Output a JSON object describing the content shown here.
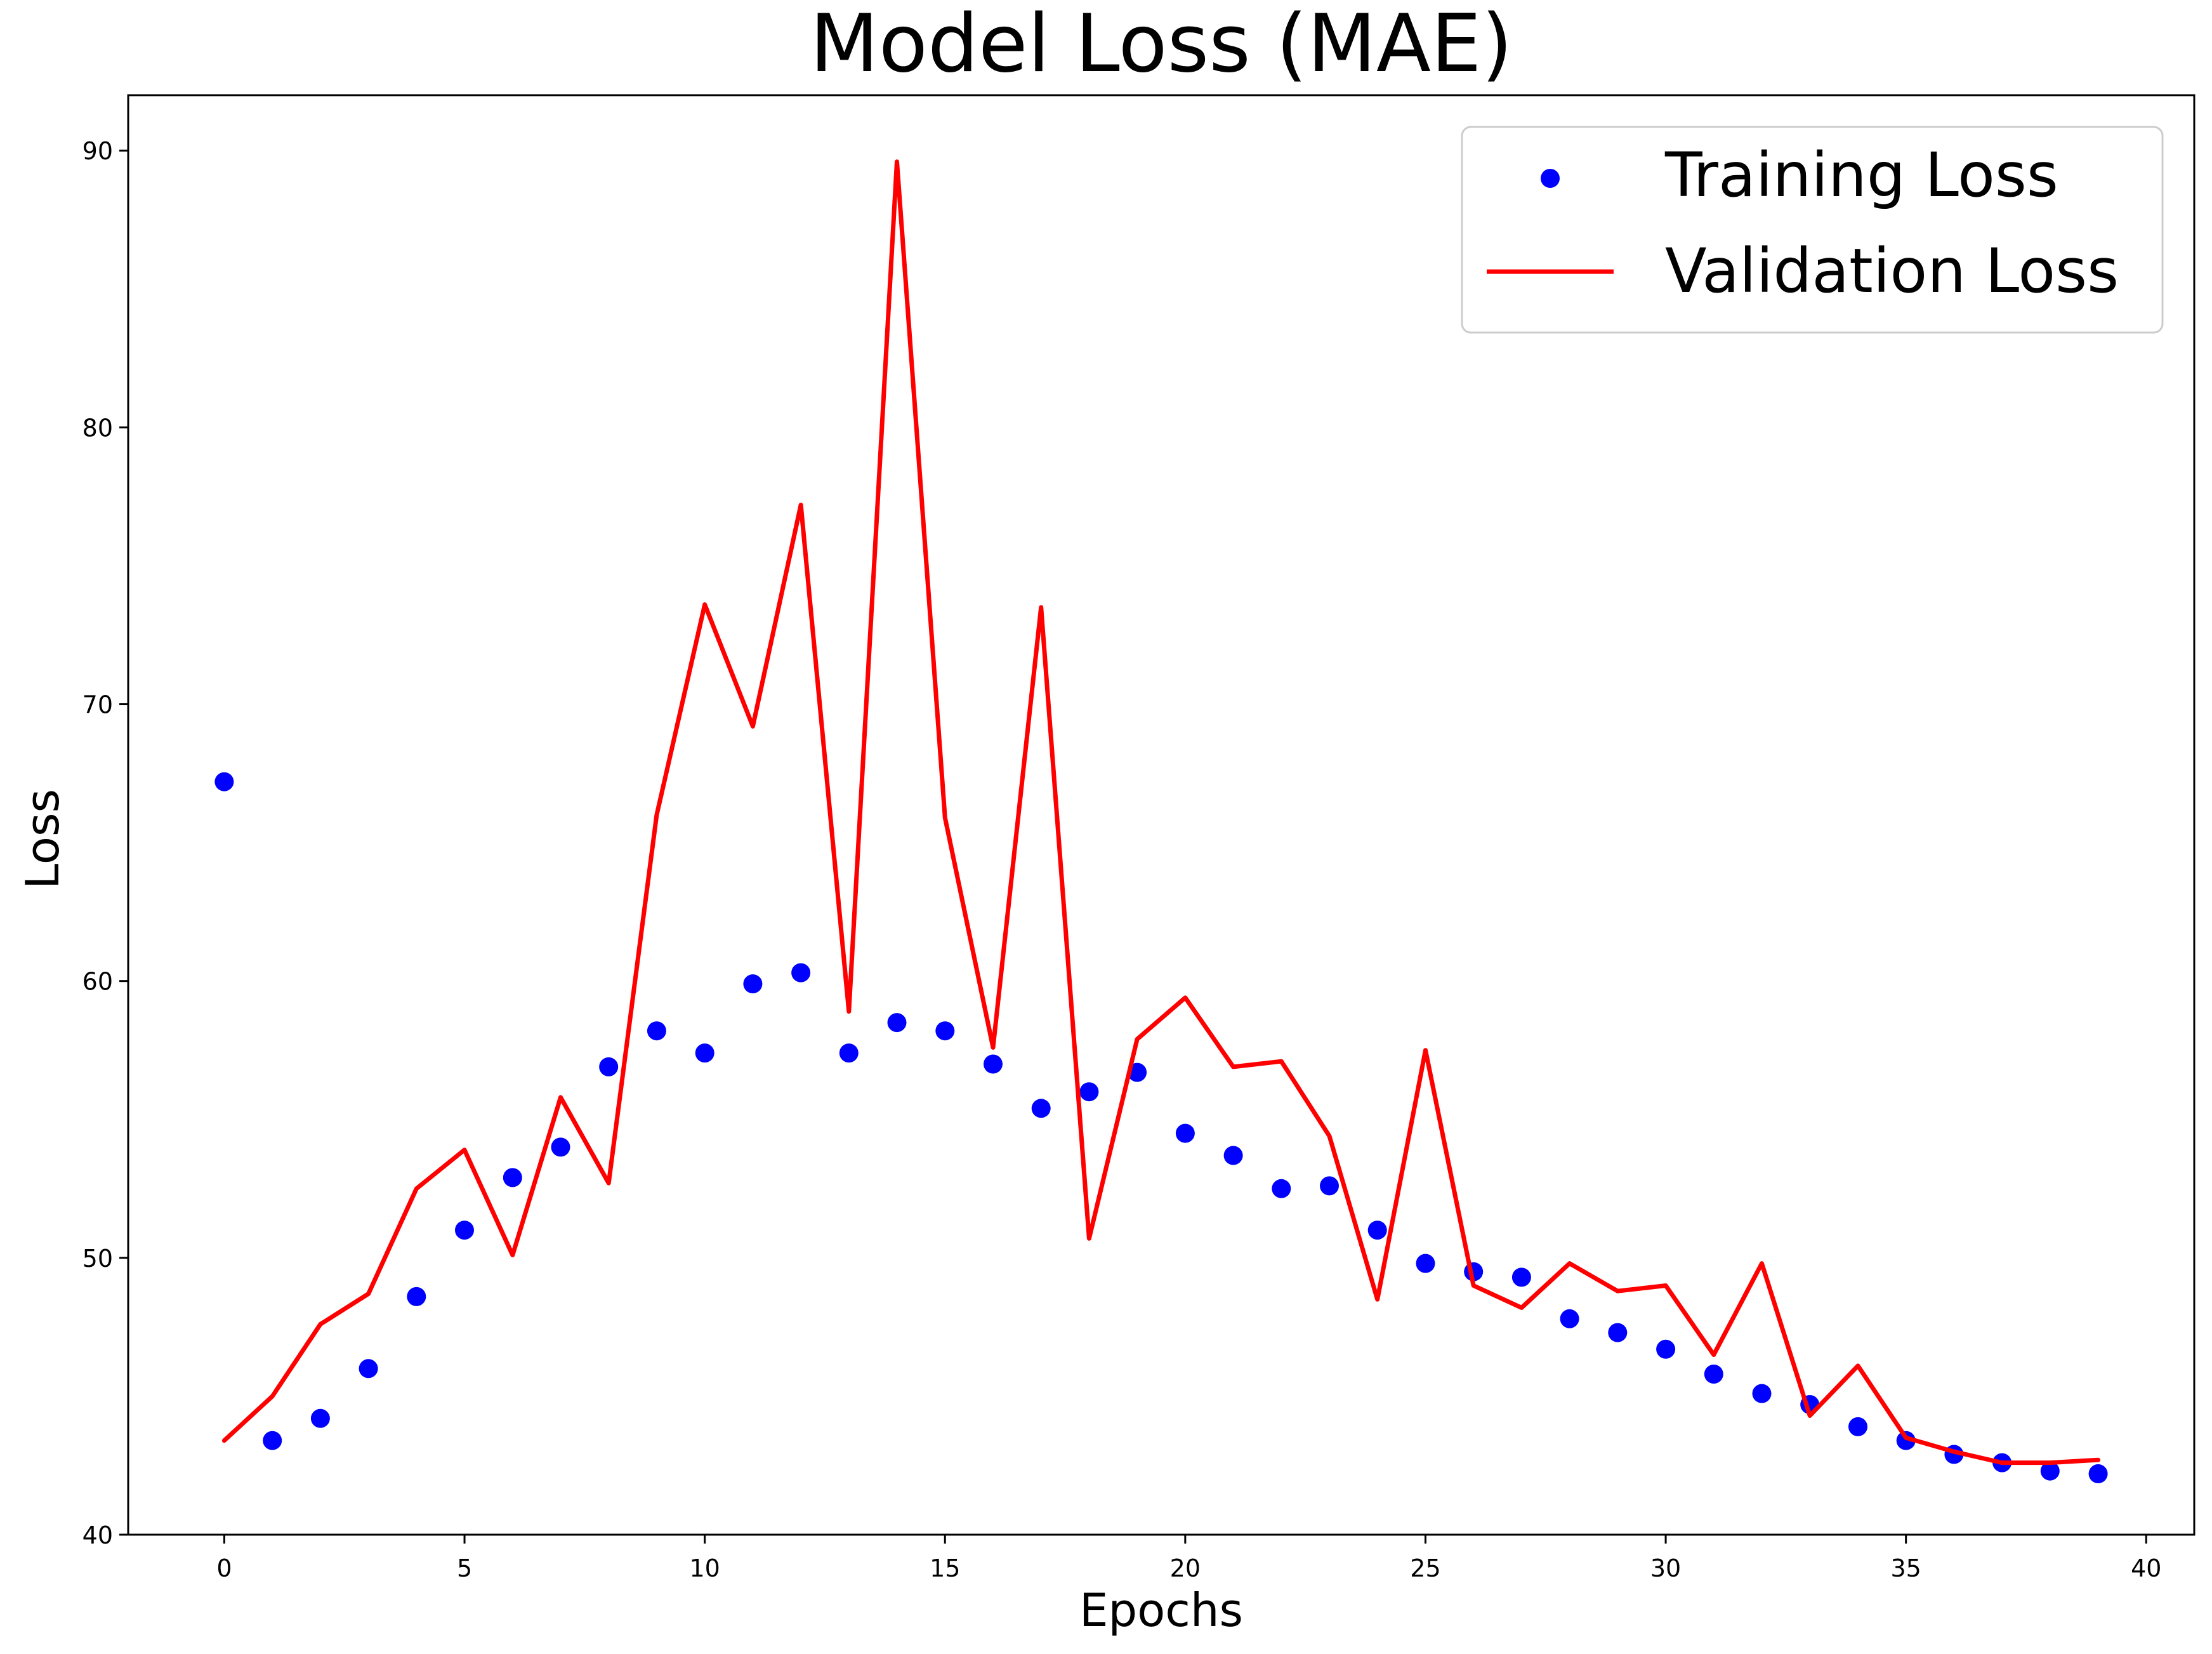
{
  "chart_data": {
    "type": "line",
    "title": "Model Loss (MAE)",
    "xlabel": "Epochs",
    "ylabel": "Loss",
    "xlim": [
      -2,
      41
    ],
    "ylim": [
      40,
      92
    ],
    "xticks": [
      0,
      5,
      10,
      15,
      20,
      25,
      30,
      35,
      40
    ],
    "yticks": [
      40,
      50,
      60,
      70,
      80,
      90
    ],
    "grid": false,
    "legend_position": "top-right",
    "x": [
      0,
      1,
      2,
      3,
      4,
      5,
      6,
      7,
      8,
      9,
      10,
      11,
      12,
      13,
      14,
      15,
      16,
      17,
      18,
      19,
      20,
      21,
      22,
      23,
      24,
      25,
      26,
      27,
      28,
      29,
      30,
      31,
      32,
      33,
      34,
      35,
      36,
      37,
      38,
      39
    ],
    "series": [
      {
        "name": "Training Loss",
        "style": "markers",
        "color": "#0000ff",
        "values": [
          67.2,
          43.4,
          44.2,
          46.0,
          48.6,
          51.0,
          52.9,
          54.0,
          56.9,
          58.2,
          57.4,
          59.9,
          60.3,
          57.4,
          58.5,
          58.2,
          57.0,
          55.4,
          56.0,
          56.7,
          54.5,
          53.7,
          52.5,
          52.6,
          51.0,
          49.8,
          49.5,
          49.3,
          47.8,
          47.3,
          46.7,
          45.8,
          45.1,
          44.7,
          43.9,
          43.4,
          42.9,
          42.6,
          42.3,
          42.2
        ]
      },
      {
        "name": "Validation Loss",
        "style": "line",
        "color": "#ff0000",
        "values": [
          43.4,
          45.0,
          47.6,
          48.7,
          52.5,
          53.9,
          50.1,
          55.8,
          52.7,
          66.0,
          73.6,
          69.2,
          77.2,
          58.9,
          89.6,
          65.9,
          57.6,
          73.5,
          50.7,
          57.9,
          59.4,
          56.9,
          57.1,
          54.4,
          48.5,
          57.5,
          49.0,
          48.2,
          49.8,
          48.8,
          49.0,
          46.5,
          49.8,
          44.3,
          46.1,
          43.5,
          43.0,
          42.6,
          42.6,
          42.7
        ]
      }
    ]
  }
}
